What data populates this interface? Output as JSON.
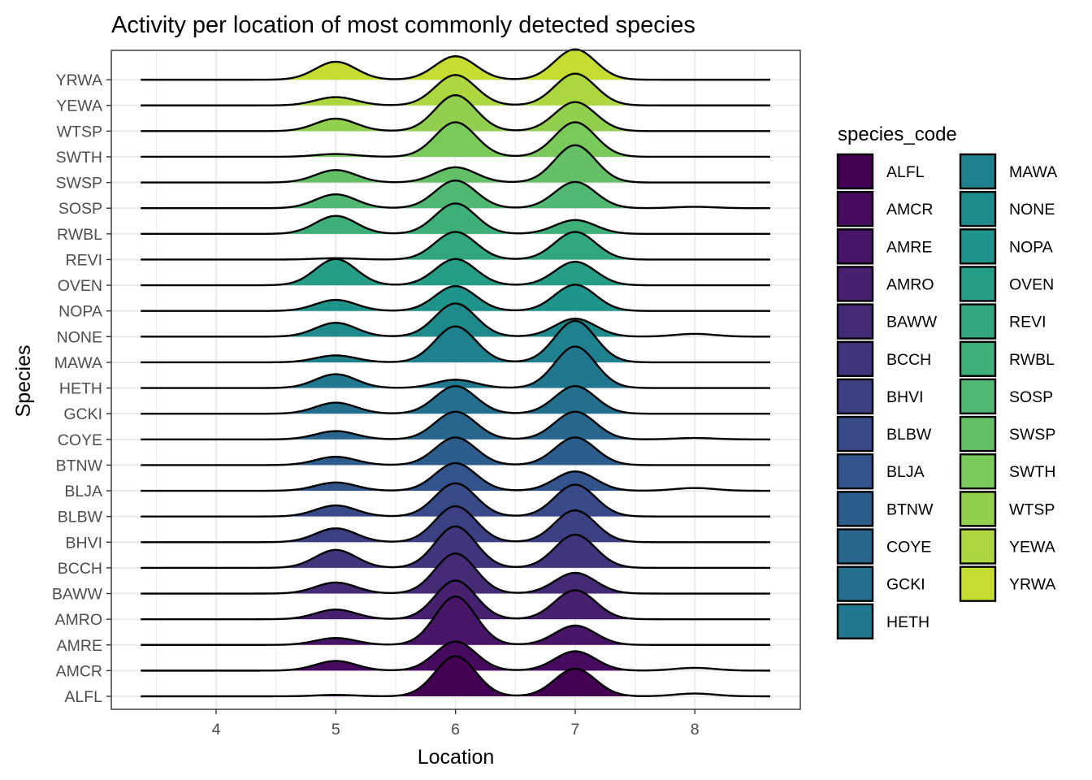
{
  "chart_data": {
    "type": "ridgeline",
    "title": "Activity per location of most commonly detected species",
    "xlabel": "Location",
    "ylabel": "Species",
    "xlim": [
      3.3,
      8.7
    ],
    "x_ticks": [
      4,
      5,
      6,
      7,
      8
    ],
    "grid": true,
    "legend_position": "right",
    "legend": {
      "title": "species_code",
      "columns": 2,
      "entries": [
        "ALFL",
        "AMCR",
        "AMRE",
        "AMRO",
        "BAWW",
        "BCCH",
        "BHVI",
        "BLBW",
        "BLJA",
        "BTNW",
        "COYE",
        "GCKI",
        "HETH",
        "MAWA",
        "NONE",
        "NOPA",
        "OVEN",
        "REVI",
        "RWBL",
        "SOSP",
        "SWSP",
        "SWTH",
        "WTSP",
        "YEWA",
        "YRWA"
      ]
    },
    "series": [
      {
        "name": "ALFL",
        "color": "#440154",
        "peaks": {
          "5": 0.05,
          "6": 1.45,
          "7": 1.0,
          "8": 0.1
        }
      },
      {
        "name": "AMCR",
        "color": "#460B5E",
        "peaks": {
          "5": 0.35,
          "6": 1.05,
          "7": 0.7,
          "8": 0.1
        }
      },
      {
        "name": "AMRE",
        "color": "#481568",
        "peaks": {
          "5": 0.25,
          "6": 1.75,
          "7": 0.7
        }
      },
      {
        "name": "AMRO",
        "color": "#47206F",
        "peaks": {
          "5": 0.35,
          "6": 1.4,
          "7": 1.05
        }
      },
      {
        "name": "BAWW",
        "color": "#452A76",
        "peaks": {
          "5": 0.4,
          "6": 1.45,
          "7": 0.75
        }
      },
      {
        "name": "BCCH",
        "color": "#42357D",
        "peaks": {
          "5": 0.65,
          "6": 1.5,
          "7": 1.2
        }
      },
      {
        "name": "BHVI",
        "color": "#3D3F83",
        "peaks": {
          "5": 0.5,
          "6": 1.3,
          "7": 1.15
        }
      },
      {
        "name": "BLBW",
        "color": "#384A88",
        "peaks": {
          "5": 0.4,
          "6": 1.2,
          "7": 1.15
        }
      },
      {
        "name": "BLJA",
        "color": "#32538B",
        "peaks": {
          "5": 0.3,
          "6": 1.0,
          "7": 0.7,
          "8": 0.1
        }
      },
      {
        "name": "BTNW",
        "color": "#2D5D8D",
        "peaks": {
          "5": 0.3,
          "6": 1.0,
          "7": 1.0
        }
      },
      {
        "name": "COYE",
        "color": "#29668E",
        "peaks": {
          "5": 0.3,
          "6": 1.0,
          "7": 1.0,
          "8": 0.05
        }
      },
      {
        "name": "GCKI",
        "color": "#256F8E",
        "peaks": {
          "5": 0.4,
          "6": 1.0,
          "7": 1.0
        }
      },
      {
        "name": "HETH",
        "color": "#21788E",
        "peaks": {
          "5": 0.5,
          "6": 0.3,
          "7": 1.5
        }
      },
      {
        "name": "MAWA",
        "color": "#1F818D",
        "peaks": {
          "5": 0.25,
          "6": 1.3,
          "7": 1.5
        }
      },
      {
        "name": "NONE",
        "color": "#1E8A8C",
        "peaks": {
          "5": 0.5,
          "6": 1.2,
          "7": 0.65,
          "8": 0.1
        }
      },
      {
        "name": "NOPA",
        "color": "#1F948A",
        "peaks": {
          "5": 0.4,
          "6": 0.9,
          "7": 0.95
        }
      },
      {
        "name": "OVEN",
        "color": "#269D86",
        "peaks": {
          "5": 0.95,
          "6": 0.95,
          "7": 0.85
        }
      },
      {
        "name": "REVI",
        "color": "#31A681",
        "peaks": {
          "5": 0.05,
          "6": 1.0,
          "7": 1.0
        }
      },
      {
        "name": "RWBL",
        "color": "#3FAF7A",
        "peaks": {
          "5": 0.65,
          "6": 1.1,
          "7": 0.5
        }
      },
      {
        "name": "SOSP",
        "color": "#50B872",
        "peaks": {
          "5": 0.5,
          "6": 1.0,
          "7": 0.95,
          "8": 0.05
        }
      },
      {
        "name": "SWSP",
        "color": "#64C067",
        "peaks": {
          "5": 0.45,
          "6": 0.55,
          "7": 1.35
        }
      },
      {
        "name": "SWTH",
        "color": "#7AC95B",
        "peaks": {
          "5": 0.1,
          "6": 1.25,
          "7": 1.25
        }
      },
      {
        "name": "WTSP",
        "color": "#92CF4E",
        "peaks": {
          "5": 0.45,
          "6": 1.3,
          "7": 1.05
        }
      },
      {
        "name": "YEWA",
        "color": "#ACD73E",
        "peaks": {
          "5": 0.3,
          "6": 1.1,
          "7": 1.15
        }
      },
      {
        "name": "YRWA",
        "color": "#C4DD30",
        "peaks": {
          "5": 0.65,
          "6": 0.85,
          "7": 1.1
        }
      }
    ]
  }
}
